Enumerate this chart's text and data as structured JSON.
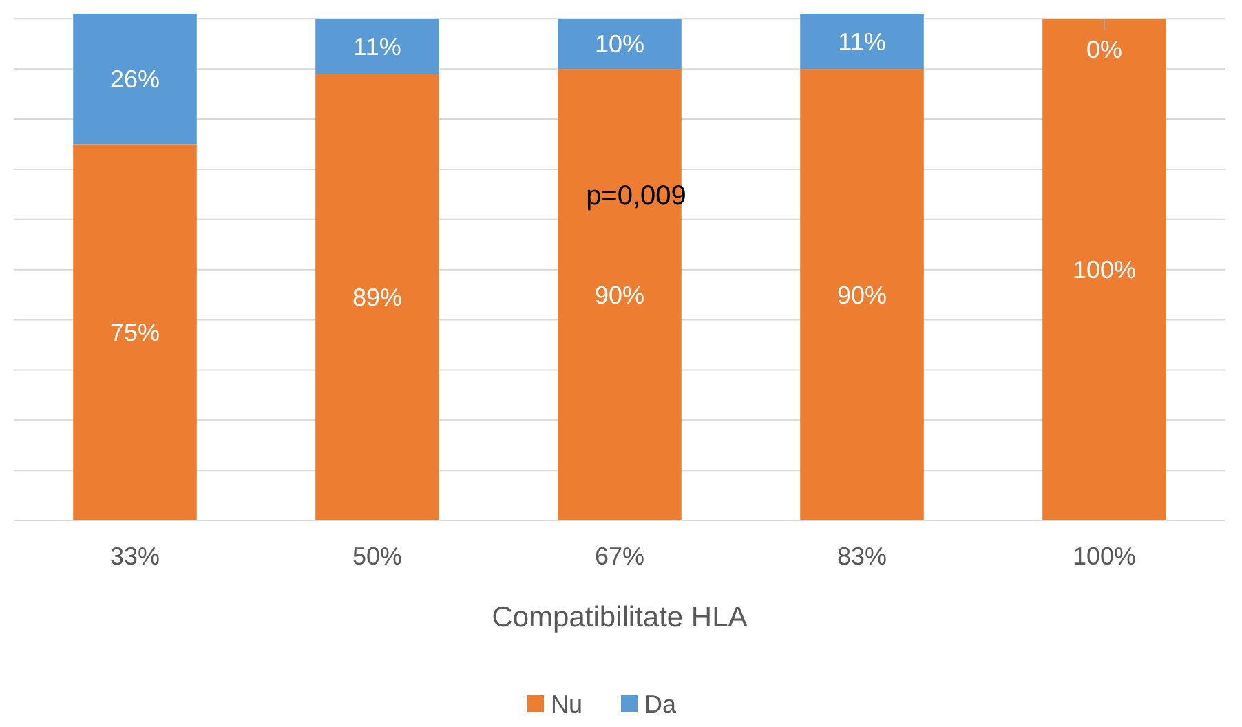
{
  "chart_data": {
    "type": "bar",
    "stacked": true,
    "xlabel": "Compatibilitate HLA",
    "categories": [
      "33%",
      "50%",
      "67%",
      "83%",
      "100%"
    ],
    "series": [
      {
        "name": "Nu",
        "color": "#ed7d31",
        "values": [
          75,
          89,
          90,
          90,
          100
        ],
        "value_labels": [
          "75%",
          "89%",
          "90%",
          "90%",
          "100%"
        ]
      },
      {
        "name": "Da",
        "color": "#5b9bd5",
        "values": [
          26,
          11,
          10,
          11,
          0
        ],
        "value_labels": [
          "26%",
          "11%",
          "10%",
          "11%",
          "0%"
        ]
      }
    ],
    "ylim": [
      0,
      101
    ],
    "yticks": [
      {
        "value": 0,
        "label": null
      },
      {
        "value": 10,
        "label": null
      },
      {
        "value": 20,
        "label": null
      },
      {
        "value": 30,
        "label": null
      },
      {
        "value": 40,
        "label": null
      },
      {
        "value": 50,
        "label": null
      },
      {
        "value": 60,
        "label": null
      },
      {
        "value": 70,
        "label": null
      },
      {
        "value": 80,
        "label": null
      },
      {
        "value": 90,
        "label": null
      },
      {
        "value": 100,
        "label": null
      }
    ],
    "tick_labels": "x",
    "grid": "y",
    "legend": "bottom",
    "annotations": [
      "p=0,009"
    ]
  }
}
